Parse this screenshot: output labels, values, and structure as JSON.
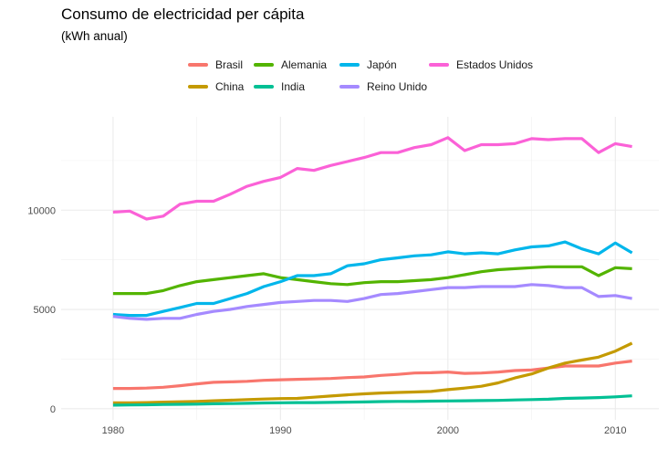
{
  "chart_data": {
    "type": "line",
    "title": "Consumo de electricidad per cápita",
    "subtitle": "(kWh anual)",
    "xlabel": "",
    "ylabel": "",
    "xlim": [
      1980,
      2011
    ],
    "ylim": [
      0,
      14000
    ],
    "x_ticks": [
      1980,
      1990,
      2000,
      2010
    ],
    "y_ticks": [
      0,
      5000,
      10000
    ],
    "y_tick_labels": [
      "0",
      "5000",
      "10000"
    ],
    "grid": true,
    "legend_position": "top",
    "x": [
      1980,
      1981,
      1982,
      1983,
      1984,
      1985,
      1986,
      1987,
      1988,
      1989,
      1990,
      1991,
      1992,
      1993,
      1994,
      1995,
      1996,
      1997,
      1998,
      1999,
      2000,
      2001,
      2002,
      2003,
      2004,
      2005,
      2006,
      2007,
      2008,
      2009,
      2010,
      2011
    ],
    "series": [
      {
        "name": "Brasil",
        "color": "#F8766D",
        "values": [
          1020,
          1020,
          1040,
          1080,
          1160,
          1250,
          1330,
          1350,
          1380,
          1430,
          1460,
          1480,
          1500,
          1520,
          1570,
          1600,
          1680,
          1730,
          1800,
          1810,
          1850,
          1780,
          1800,
          1850,
          1920,
          1950,
          2050,
          2150,
          2150,
          2150,
          2300,
          2400
        ]
      },
      {
        "name": "China",
        "color": "#C49A00",
        "values": [
          300,
          300,
          310,
          330,
          350,
          370,
          400,
          430,
          460,
          490,
          510,
          520,
          580,
          640,
          700,
          750,
          790,
          820,
          840,
          870,
          960,
          1040,
          1130,
          1300,
          1550,
          1750,
          2050,
          2300,
          2450,
          2600,
          2900,
          3300
        ]
      },
      {
        "name": "Alemania",
        "color": "#53B400",
        "values": [
          5800,
          5800,
          5800,
          5950,
          6200,
          6400,
          6500,
          6600,
          6700,
          6800,
          6600,
          6500,
          6400,
          6300,
          6250,
          6350,
          6400,
          6400,
          6450,
          6500,
          6600,
          6750,
          6900,
          7000,
          7050,
          7100,
          7150,
          7150,
          7150,
          6700,
          7100,
          7050
        ]
      },
      {
        "name": "India",
        "color": "#00C094",
        "values": [
          180,
          190,
          200,
          210,
          220,
          230,
          250,
          260,
          270,
          290,
          300,
          310,
          310,
          320,
          330,
          340,
          360,
          370,
          370,
          380,
          390,
          400,
          410,
          420,
          440,
          460,
          480,
          520,
          540,
          560,
          600,
          650
        ]
      },
      {
        "name": "Japón",
        "color": "#00B6EB",
        "values": [
          4750,
          4700,
          4700,
          4900,
          5100,
          5300,
          5300,
          5550,
          5800,
          6150,
          6400,
          6700,
          6700,
          6800,
          7200,
          7300,
          7500,
          7600,
          7700,
          7750,
          7900,
          7800,
          7850,
          7800,
          8000,
          8150,
          8200,
          8400,
          8050,
          7800,
          8350,
          7850
        ]
      },
      {
        "name": "Reino Unido",
        "color": "#A58AFF",
        "values": [
          4650,
          4550,
          4500,
          4550,
          4550,
          4750,
          4900,
          5000,
          5150,
          5250,
          5350,
          5400,
          5450,
          5450,
          5400,
          5550,
          5750,
          5800,
          5900,
          6000,
          6100,
          6100,
          6150,
          6150,
          6150,
          6250,
          6200,
          6100,
          6100,
          5650,
          5700,
          5550
        ]
      },
      {
        "name": "Estados Unidos",
        "color": "#FB61D7",
        "values": [
          9900,
          9950,
          9550,
          9700,
          10300,
          10450,
          10450,
          10800,
          11200,
          11450,
          11650,
          12100,
          12000,
          12250,
          12450,
          12650,
          12900,
          12900,
          13150,
          13300,
          13650,
          13000,
          13300,
          13300,
          13350,
          13600,
          13550,
          13600,
          13600,
          12900,
          13350,
          13200
        ]
      }
    ]
  }
}
